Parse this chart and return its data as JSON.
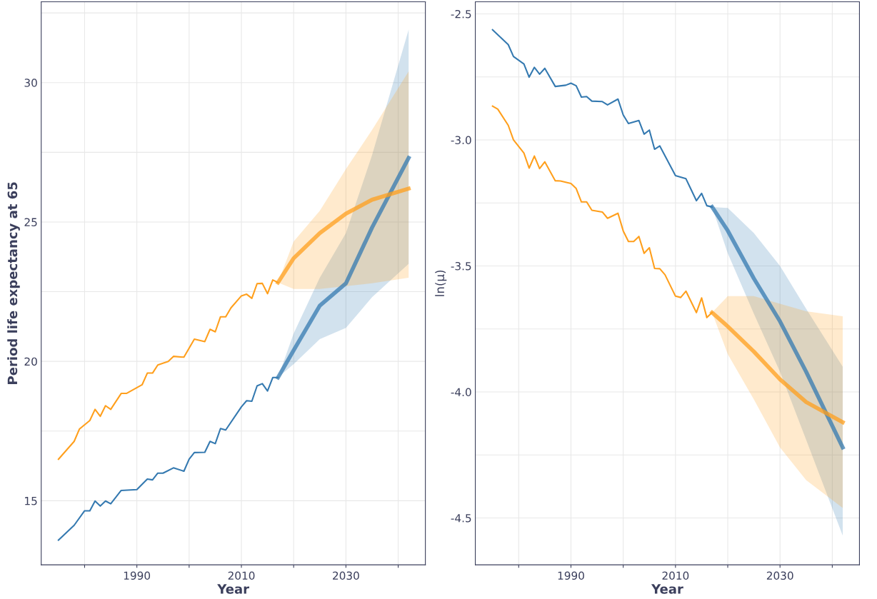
{
  "chart_data": [
    {
      "type": "line",
      "xlabel": "Year",
      "ylabel": "Period life expectancy at 65",
      "xlim": [
        1971.7,
        2045.2
      ],
      "ylim": [
        12.7,
        32.9
      ],
      "xticks": [
        {
          "value": 1980,
          "label": null
        },
        1990,
        {
          "value": 2000,
          "label": null
        },
        2010,
        {
          "value": 2020,
          "label": null
        },
        2030,
        {
          "value": 2040,
          "label": null
        }
      ],
      "yticks": [
        15,
        {
          "value": 17.5,
          "label": null
        },
        20,
        {
          "value": 22.5,
          "label": null
        },
        25,
        {
          "value": 27.5,
          "label": null
        },
        30,
        {
          "value": 32.5,
          "label": null
        }
      ],
      "grid": true,
      "line_style": "solid",
      "marker": "none",
      "series": [
        {
          "color": "#3479b0",
          "x": [
            1975,
            1978,
            1980,
            1981,
            1982,
            1983,
            1984,
            1985,
            1987,
            1990,
            1992,
            1993,
            1994,
            1995,
            1997,
            1999,
            2000,
            2001,
            2003,
            2004,
            2005,
            2006,
            2007,
            2010,
            2011,
            2012,
            2013,
            2014,
            2015,
            2016,
            2017
          ],
          "values": [
            13.59,
            14.12,
            14.64,
            14.64,
            14.99,
            14.81,
            14.99,
            14.89,
            15.37,
            15.4,
            15.78,
            15.75,
            15.99,
            15.99,
            16.18,
            16.06,
            16.49,
            16.73,
            16.74,
            17.13,
            17.05,
            17.59,
            17.54,
            18.37,
            18.59,
            18.57,
            19.12,
            19.2,
            18.94,
            19.42,
            19.42
          ]
        },
        {
          "color": "#3479b0",
          "x": [
            2017,
            2020,
            2025,
            2030,
            2035,
            2042
          ],
          "values": [
            19.42,
            20.4,
            22.0,
            22.8,
            24.8,
            27.3
          ],
          "lower": [
            19.42,
            19.9,
            20.8,
            21.2,
            22.3,
            23.5
          ],
          "upper": [
            19.42,
            21.0,
            23.0,
            24.6,
            27.4,
            31.9
          ]
        },
        {
          "color": "#ff9f1c",
          "x": [
            1975,
            1978,
            1979,
            1981,
            1982,
            1983,
            1984,
            1985,
            1987,
            1988,
            1991,
            1992,
            1993,
            1994,
            1996,
            1997,
            1999,
            2001,
            2003,
            2004,
            2005,
            2006,
            2007,
            2008,
            2010,
            2011,
            2012,
            2013,
            2014,
            2015,
            2016,
            2017
          ],
          "values": [
            16.49,
            17.13,
            17.57,
            17.88,
            18.28,
            18.03,
            18.41,
            18.28,
            18.85,
            18.85,
            19.16,
            19.58,
            19.58,
            19.87,
            20.0,
            20.18,
            20.15,
            20.8,
            20.71,
            21.15,
            21.06,
            21.6,
            21.6,
            21.92,
            22.35,
            22.41,
            22.26,
            22.79,
            22.8,
            22.43,
            22.92,
            22.83
          ]
        },
        {
          "color": "#ff9f1c",
          "x": [
            2017,
            2020,
            2025,
            2030,
            2035,
            2042
          ],
          "values": [
            22.83,
            23.7,
            24.6,
            25.3,
            25.8,
            26.2
          ],
          "lower": [
            22.83,
            22.6,
            22.6,
            22.7,
            22.8,
            23.0
          ],
          "upper": [
            22.83,
            24.3,
            25.4,
            26.9,
            28.3,
            30.4
          ]
        }
      ]
    },
    {
      "type": "line",
      "xlabel": "Year",
      "ylabel": "ln(μ)",
      "xlim": [
        1971.7,
        2045.2
      ],
      "ylim": [
        -4.686,
        -2.452
      ],
      "xticks": [
        {
          "value": 1980,
          "label": null
        },
        1990,
        {
          "value": 2000,
          "label": null
        },
        2010,
        {
          "value": 2020,
          "label": null
        },
        2030,
        {
          "value": 2040,
          "label": null
        }
      ],
      "yticks": [
        {
          "value": -4.5,
          "label": "-4.5"
        },
        {
          "value": -4.25,
          "label": null
        },
        {
          "value": -4.0,
          "label": "-4.0"
        },
        {
          "value": -3.75,
          "label": null
        },
        {
          "value": -3.5,
          "label": "-3.5"
        },
        {
          "value": -3.25,
          "label": null
        },
        {
          "value": -3.0,
          "label": "-3.0"
        },
        {
          "value": -2.75,
          "label": null
        },
        {
          "value": -2.5,
          "label": "-2.5"
        }
      ],
      "grid": true,
      "line_style": "solid",
      "marker": "none",
      "series": [
        {
          "color": "#3479b0",
          "x": [
            1975,
            1978,
            1979,
            1981,
            1982,
            1983,
            1984,
            1985,
            1987,
            1989,
            1990,
            1991,
            1992,
            1993,
            1994,
            1996,
            1997,
            1999,
            2000,
            2001,
            2003,
            2004,
            2005,
            2006,
            2007,
            2010,
            2012,
            2014,
            2015,
            2016,
            2017
          ],
          "values": [
            -2.563,
            -2.622,
            -2.669,
            -2.699,
            -2.751,
            -2.712,
            -2.739,
            -2.716,
            -2.788,
            -2.783,
            -2.775,
            -2.785,
            -2.83,
            -2.828,
            -2.846,
            -2.848,
            -2.861,
            -2.838,
            -2.901,
            -2.935,
            -2.923,
            -2.977,
            -2.961,
            -3.037,
            -3.024,
            -3.142,
            -3.154,
            -3.241,
            -3.212,
            -3.261,
            -3.266
          ]
        },
        {
          "color": "#3479b0",
          "x": [
            2017,
            2020,
            2025,
            2030,
            2035,
            2042
          ],
          "values": [
            -3.266,
            -3.36,
            -3.55,
            -3.72,
            -3.92,
            -4.22
          ],
          "lower": [
            -3.266,
            -3.45,
            -3.69,
            -3.92,
            -4.19,
            -4.57
          ],
          "upper": [
            -3.266,
            -3.27,
            -3.37,
            -3.5,
            -3.67,
            -3.9
          ]
        },
        {
          "color": "#ff9f1c",
          "x": [
            1975,
            1976,
            1978,
            1979,
            1981,
            1982,
            1983,
            1984,
            1985,
            1987,
            1988,
            1990,
            1991,
            1992,
            1993,
            1994,
            1996,
            1997,
            1999,
            2000,
            2001,
            2002,
            2003,
            2004,
            2005,
            2006,
            2007,
            2008,
            2010,
            2011,
            2012,
            2014,
            2015,
            2016,
            2017
          ],
          "values": [
            -2.866,
            -2.878,
            -2.942,
            -3.0,
            -3.052,
            -3.112,
            -3.064,
            -3.114,
            -3.087,
            -3.162,
            -3.163,
            -3.173,
            -3.193,
            -3.246,
            -3.246,
            -3.279,
            -3.286,
            -3.311,
            -3.291,
            -3.361,
            -3.403,
            -3.403,
            -3.383,
            -3.45,
            -3.428,
            -3.51,
            -3.511,
            -3.535,
            -3.62,
            -3.625,
            -3.6,
            -3.685,
            -3.627,
            -3.705,
            -3.685
          ]
        },
        {
          "color": "#ff9f1c",
          "x": [
            2017,
            2020,
            2025,
            2030,
            2035,
            2042
          ],
          "values": [
            -3.685,
            -3.74,
            -3.84,
            -3.95,
            -4.04,
            -4.12
          ],
          "lower": [
            -3.685,
            -3.85,
            -4.03,
            -4.22,
            -4.35,
            -4.46
          ],
          "upper": [
            -3.685,
            -3.62,
            -3.62,
            -3.65,
            -3.68,
            -3.7
          ]
        }
      ]
    }
  ]
}
